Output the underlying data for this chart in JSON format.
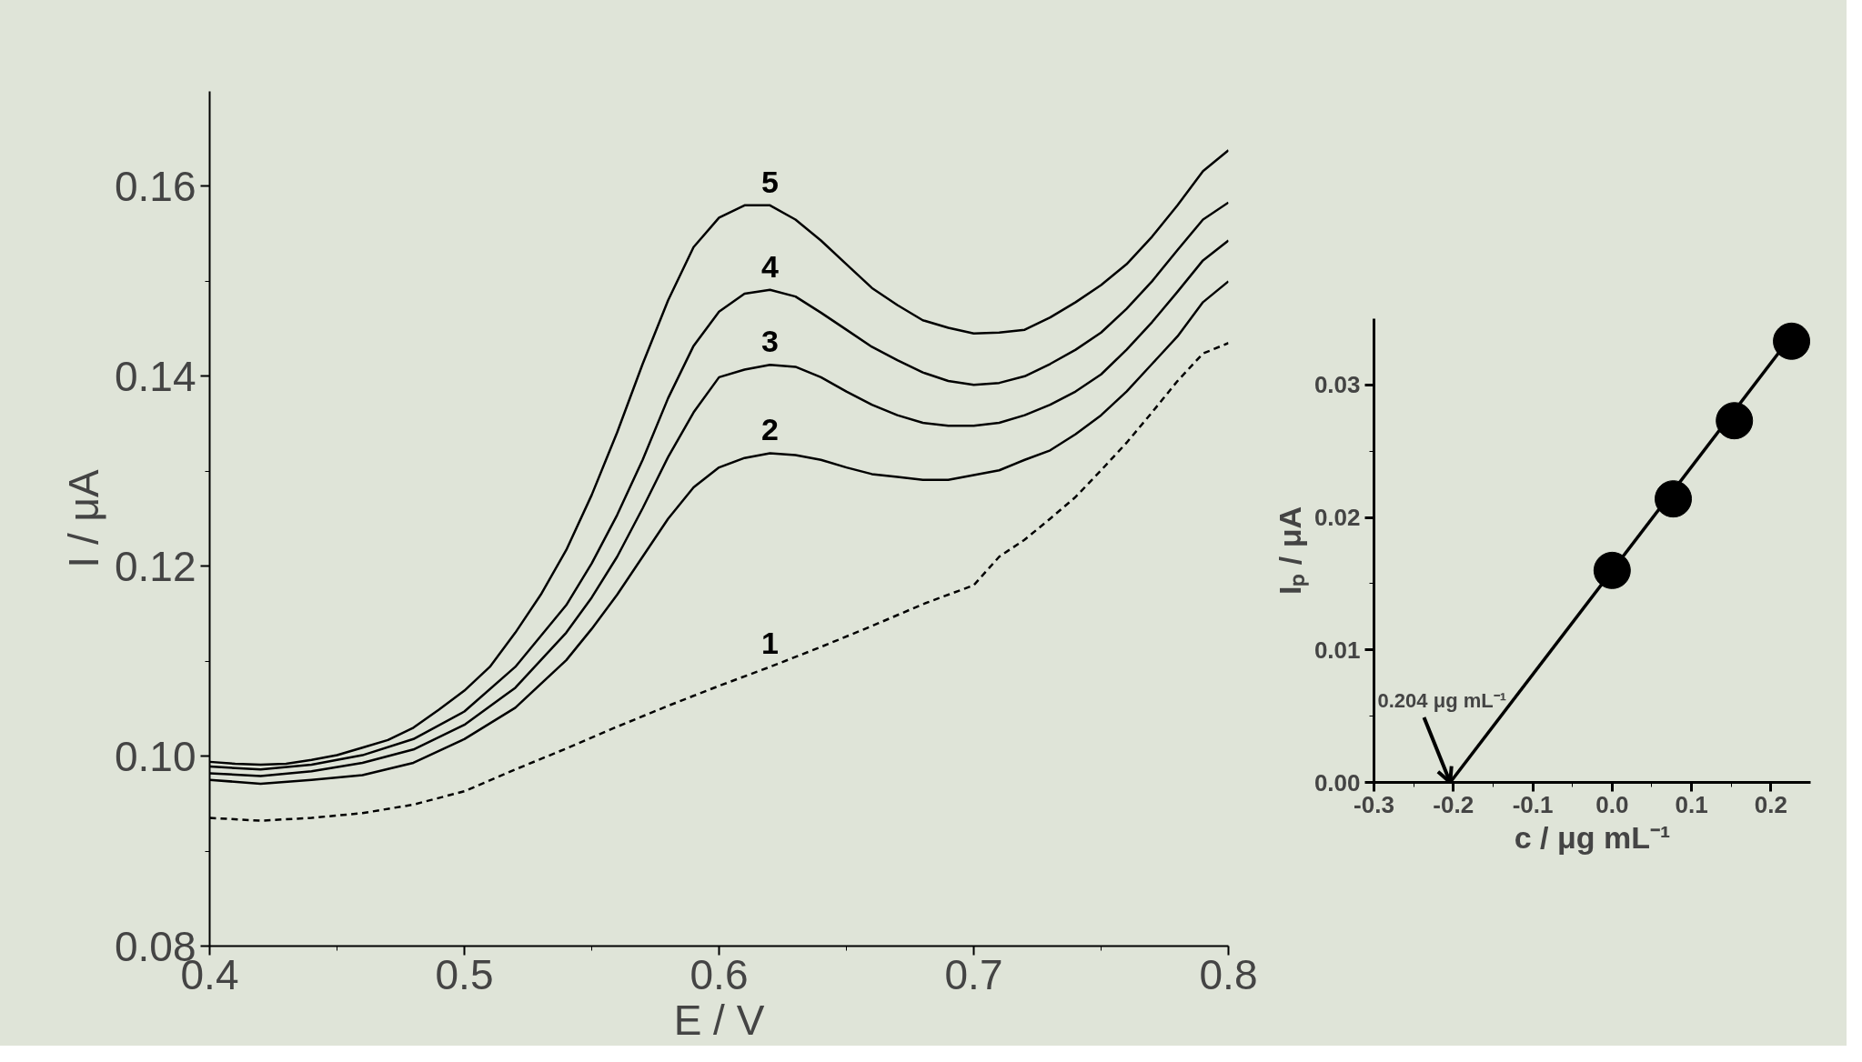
{
  "chart_data": [
    {
      "type": "line",
      "xlabel": "E / V",
      "ylabel": "I / μA",
      "xlim": [
        0.4,
        0.8
      ],
      "ylim": [
        0.08,
        0.17
      ],
      "xticks": [
        0.4,
        0.5,
        0.6,
        0.7,
        0.8
      ],
      "yticks": [
        0.08,
        {
          "value": 0.1,
          "label": "0.10"
        },
        0.12,
        0.14,
        0.16
      ],
      "grid": false,
      "legend": false,
      "series": [
        {
          "name": "1",
          "color": "#000000",
          "line_style": "dashed",
          "x": [
            0.4,
            0.42,
            0.44,
            0.46,
            0.48,
            0.5,
            0.52,
            0.54,
            0.56,
            0.58,
            0.6,
            0.62,
            0.64,
            0.66,
            0.68,
            0.7,
            0.71,
            0.72,
            0.73,
            0.74,
            0.75,
            0.76,
            0.77,
            0.78,
            0.79,
            0.8
          ],
          "values": [
            0.0935,
            0.0932,
            0.0935,
            0.094,
            0.0949,
            0.0963,
            0.0986,
            0.1008,
            0.1031,
            0.1053,
            0.1074,
            0.1094,
            0.1115,
            0.1137,
            0.116,
            0.118,
            0.121,
            0.1228,
            0.125,
            0.1273,
            0.1301,
            0.133,
            0.1362,
            0.1395,
            0.1424,
            0.1435
          ]
        },
        {
          "name": "2",
          "color": "#000000",
          "x": [
            0.4,
            0.42,
            0.44,
            0.46,
            0.48,
            0.5,
            0.52,
            0.54,
            0.55,
            0.56,
            0.57,
            0.58,
            0.59,
            0.6,
            0.61,
            0.62,
            0.63,
            0.64,
            0.65,
            0.66,
            0.67,
            0.68,
            0.69,
            0.7,
            0.71,
            0.72,
            0.73,
            0.74,
            0.75,
            0.76,
            0.77,
            0.78,
            0.79,
            0.8
          ],
          "values": [
            0.0975,
            0.0971,
            0.0975,
            0.098,
            0.0993,
            0.1018,
            0.1051,
            0.1101,
            0.1134,
            0.117,
            0.121,
            0.125,
            0.1283,
            0.1304,
            0.1314,
            0.1319,
            0.1317,
            0.1312,
            0.1304,
            0.1297,
            0.1294,
            0.1291,
            0.1291,
            0.1296,
            0.1301,
            0.1312,
            0.1322,
            0.1339,
            0.1359,
            0.1384,
            0.1413,
            0.1442,
            0.1478,
            0.15
          ]
        },
        {
          "name": "3",
          "color": "#000000",
          "x": [
            0.4,
            0.42,
            0.44,
            0.46,
            0.48,
            0.5,
            0.52,
            0.54,
            0.55,
            0.56,
            0.57,
            0.58,
            0.59,
            0.6,
            0.61,
            0.62,
            0.63,
            0.64,
            0.65,
            0.66,
            0.67,
            0.68,
            0.69,
            0.7,
            0.71,
            0.72,
            0.73,
            0.74,
            0.75,
            0.76,
            0.77,
            0.78,
            0.79,
            0.8
          ],
          "values": [
            0.0982,
            0.0979,
            0.0984,
            0.0993,
            0.1007,
            0.1033,
            0.1072,
            0.113,
            0.1167,
            0.121,
            0.1261,
            0.1315,
            0.1362,
            0.1399,
            0.1407,
            0.1412,
            0.141,
            0.1399,
            0.1384,
            0.137,
            0.1359,
            0.1351,
            0.1348,
            0.1348,
            0.1351,
            0.1359,
            0.137,
            0.1384,
            0.1402,
            0.1428,
            0.1457,
            0.1489,
            0.1522,
            0.1543
          ]
        },
        {
          "name": "4",
          "color": "#000000",
          "x": [
            0.4,
            0.42,
            0.44,
            0.46,
            0.48,
            0.5,
            0.52,
            0.54,
            0.55,
            0.56,
            0.57,
            0.58,
            0.59,
            0.6,
            0.61,
            0.62,
            0.63,
            0.64,
            0.65,
            0.66,
            0.67,
            0.68,
            0.69,
            0.7,
            0.71,
            0.72,
            0.73,
            0.74,
            0.75,
            0.76,
            0.77,
            0.78,
            0.79,
            0.8
          ],
          "values": [
            0.0989,
            0.0986,
            0.0991,
            0.1001,
            0.1018,
            0.1047,
            0.1094,
            0.1159,
            0.1203,
            0.1254,
            0.1312,
            0.1377,
            0.1432,
            0.1468,
            0.1487,
            0.1491,
            0.1484,
            0.1467,
            0.1449,
            0.1431,
            0.1417,
            0.1404,
            0.1395,
            0.1391,
            0.1393,
            0.14,
            0.1413,
            0.1428,
            0.1446,
            0.1471,
            0.15,
            0.1533,
            0.1565,
            0.1583
          ]
        },
        {
          "name": "5",
          "color": "#000000",
          "x": [
            0.4,
            0.41,
            0.42,
            0.43,
            0.44,
            0.45,
            0.46,
            0.47,
            0.48,
            0.49,
            0.5,
            0.51,
            0.52,
            0.53,
            0.54,
            0.55,
            0.56,
            0.57,
            0.58,
            0.59,
            0.6,
            0.61,
            0.62,
            0.63,
            0.64,
            0.65,
            0.66,
            0.67,
            0.68,
            0.69,
            0.7,
            0.71,
            0.72,
            0.73,
            0.74,
            0.75,
            0.76,
            0.77,
            0.78,
            0.79,
            0.8
          ],
          "values": [
            0.0994,
            0.0992,
            0.0991,
            0.0992,
            0.0996,
            0.1001,
            0.1009,
            0.1017,
            0.103,
            0.1049,
            0.1069,
            0.1094,
            0.113,
            0.117,
            0.1217,
            0.1275,
            0.1341,
            0.1413,
            0.148,
            0.1536,
            0.1567,
            0.158,
            0.158,
            0.1565,
            0.1543,
            0.1518,
            0.1493,
            0.1475,
            0.1459,
            0.1451,
            0.1445,
            0.1446,
            0.1449,
            0.1462,
            0.1478,
            0.1496,
            0.1518,
            0.1547,
            0.158,
            0.1616,
            0.1638
          ]
        }
      ]
    },
    {
      "type": "scatter",
      "xlabel": "c / μg mL⁻¹",
      "ylabel": "Iₚ / μA",
      "xlim": [
        -0.3,
        0.25
      ],
      "ylim": [
        0,
        0.035
      ],
      "xticks": [
        -0.3,
        -0.2,
        -0.1,
        {
          "value": 0,
          "label": "0.0"
        },
        0.1,
        0.2
      ],
      "yticks": [
        {
          "value": 0,
          "label": "0.00"
        },
        0.01,
        0.02,
        0.03
      ],
      "grid": false,
      "legend": false,
      "annotations": [
        {
          "text": "0.204 μg mL⁻¹",
          "x": -0.204,
          "y": 0
        }
      ],
      "series": [
        {
          "type": "line",
          "color": "#000000",
          "x": [
            -0.204,
            0.235
          ],
          "values": [
            0,
            0.0344
          ]
        },
        {
          "type": "scatter",
          "marker": "circle",
          "color": "#000000",
          "x": [
            0,
            0.077,
            0.154,
            0.226
          ],
          "values": [
            0.016,
            0.0214,
            0.0273,
            0.0333
          ]
        }
      ]
    }
  ]
}
